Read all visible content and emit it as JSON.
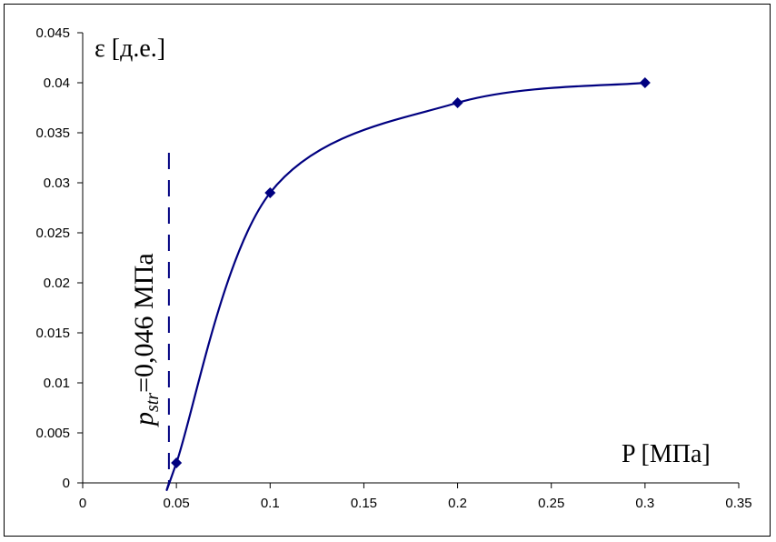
{
  "chart_data": {
    "type": "line",
    "title": "",
    "xlabel": "P [МПа]",
    "ylabel": "ε [д.е.]",
    "xlim": [
      0,
      0.35
    ],
    "ylim": [
      0,
      0.045
    ],
    "x_ticks": [
      "0",
      "0.05",
      "0.1",
      "0.15",
      "0.2",
      "0.25",
      "0.3",
      "0.35"
    ],
    "y_ticks": [
      "0",
      "0.005",
      "0.01",
      "0.015",
      "0.02",
      "0.025",
      "0.03",
      "0.035",
      "0.04",
      "0.045"
    ],
    "grid": false,
    "legend": "none",
    "series": [
      {
        "x": [
          0.046,
          0.05,
          0.1,
          0.2,
          0.3
        ],
        "y": [
          0.0,
          0.002,
          0.029,
          0.038,
          0.04
        ],
        "color": "#000080",
        "marker": "diamond",
        "smooth": true
      }
    ],
    "annotation": {
      "main": "p",
      "subscript": "str",
      "rest": "=0,046 МПа",
      "x": 0.046,
      "y_range": [
        0,
        0.033
      ],
      "style": "dashed",
      "color": "#000080"
    }
  }
}
